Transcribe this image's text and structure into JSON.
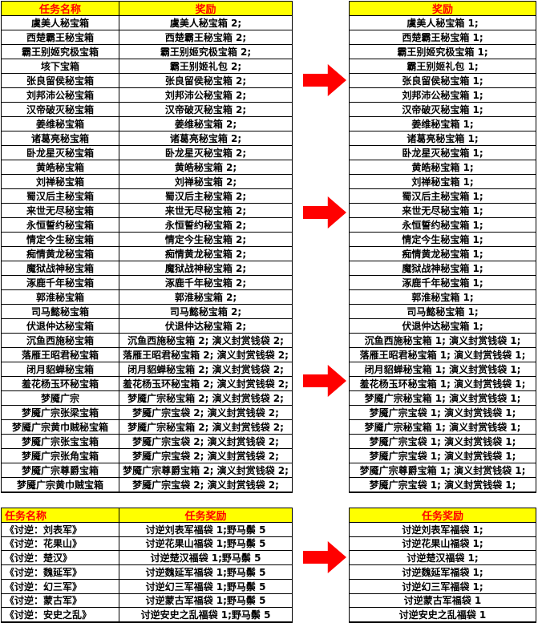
{
  "colors": {
    "header_bg": "#FFFF00",
    "header_text": "#FF0000",
    "arrow": "#FF0000",
    "border": "#000000",
    "cell_text": "#000000"
  },
  "arrows": {
    "direction": "right",
    "count": 4
  },
  "top": {
    "left": {
      "headers": [
        "任务名称",
        "奖励"
      ],
      "rows": [
        [
          "虞美人秘宝箱",
          "虞美人秘宝箱 2;"
        ],
        [
          "西楚霸王秘宝箱",
          "西楚霸王秘宝箱 2;"
        ],
        [
          "霸王别姬究极宝箱",
          "霸王别姬究极宝箱 2;"
        ],
        [
          "垓下宝箱",
          "霸王别姬礼包 2;"
        ],
        [
          "张良留侯秘宝箱",
          "张良留侯秘宝箱 2;"
        ],
        [
          "刘邦沛公秘宝箱",
          "刘邦沛公秘宝箱 2;"
        ],
        [
          "汉帝破灭秘宝箱",
          "汉帝破灭秘宝箱 2;"
        ],
        [
          "姜维秘宝箱",
          "姜维秘宝箱 2;"
        ],
        [
          "诸葛亮秘宝箱",
          "诸葛亮秘宝箱 2;"
        ],
        [
          "卧龙星灭秘宝箱",
          "卧龙星灭秘宝箱 2;"
        ],
        [
          "黄皓秘宝箱",
          "黄皓秘宝箱 2;"
        ],
        [
          "刘禅秘宝箱",
          "刘禅秘宝箱 2;"
        ],
        [
          "蜀汉后主秘宝箱",
          "蜀汉后主秘宝箱 2;"
        ],
        [
          "来世无尽秘宝箱",
          "来世无尽秘宝箱 2;"
        ],
        [
          "永恒誓约秘宝箱",
          "永恒誓约秘宝箱 2;"
        ],
        [
          "情定今生秘宝箱",
          "情定今生秘宝箱 2;"
        ],
        [
          "痴情黄龙秘宝箱",
          "痴情黄龙秘宝箱 2;"
        ],
        [
          "魔狱战神秘宝箱",
          "魔狱战神秘宝箱 2;"
        ],
        [
          "涿鹿千年秘宝箱",
          "涿鹿千年秘宝箱 2;"
        ],
        [
          "郭淮秘宝箱",
          "郭淮秘宝箱 2;"
        ],
        [
          "司马懿秘宝箱",
          "司马懿秘宝箱 2;"
        ],
        [
          "伏退仲达秘宝箱",
          "伏退仲达秘宝箱 2;"
        ],
        [
          "沉鱼西施秘宝箱",
          "沉鱼西施秘宝箱 2; 演义封赏钱袋 2;"
        ],
        [
          "落雁王昭君秘宝箱",
          "落雁王昭君秘宝箱 2; 演义封赏钱袋 2;"
        ],
        [
          "闭月貂蝉秘宝箱",
          "闭月貂蝉秘宝箱 2; 演义封赏钱袋 2;"
        ],
        [
          "羞花杨玉环秘宝箱",
          "羞花杨玉环秘宝箱 2; 演义封赏钱袋 2;"
        ],
        [
          "梦魇广宗",
          "梦魇广宗秘宝箱 2; 演义封赏钱袋 2;"
        ],
        [
          "梦魇广宗张梁宝箱",
          "梦魇广宗宝袋 2; 演义封赏钱袋 2;"
        ],
        [
          "梦魇广宗黄巾贼秘宝箱",
          "梦魇广宗秘宝箱 2; 演义封赏钱袋 2;"
        ],
        [
          "梦魇广宗张宝宝箱",
          "梦魇广宗宝袋 2; 演义封赏钱袋 2;"
        ],
        [
          "梦魇广宗张角宝箱",
          "梦魇广宗宝袋 2; 演义封赏钱袋 2;"
        ],
        [
          "梦魇广宗尊爵宝箱",
          "梦魇广宗尊爵宝箱 2; 演义封赏钱袋 2;"
        ],
        [
          "梦魇广宗黄巾贼宝箱",
          "梦魇广宗宝袋 2; 演义封赏钱袋 2;"
        ]
      ]
    },
    "right": {
      "header": "奖励",
      "rows": [
        "虞美人秘宝箱 1;",
        "西楚霸王秘宝箱 1;",
        "霸王别姬究极宝箱 1;",
        "霸王别姬礼包 1;",
        "张良留侯秘宝箱 1;",
        "刘邦沛公秘宝箱 1;",
        "汉帝破灭秘宝箱 1;",
        "姜维秘宝箱 1;",
        "诸葛亮秘宝箱 1;",
        "卧龙星灭秘宝箱 1;",
        "黄皓秘宝箱 1;",
        "刘禅秘宝箱 1;",
        "蜀汉后主秘宝箱 1;",
        "来世无尽秘宝箱 1;",
        "永恒誓约秘宝箱 1;",
        "情定今生秘宝箱 1;",
        "痴情黄龙秘宝箱 1;",
        "魔狱战神秘宝箱 1;",
        "涿鹿千年秘宝箱 1;",
        "郭淮秘宝箱 1;",
        "司马懿秘宝箱 1;",
        "伏退仲达秘宝箱 1;",
        "沉鱼西施秘宝箱 1; 演义封赏钱袋 1;",
        "落雁王昭君秘宝箱 1; 演义封赏钱袋 1;",
        "闭月貂蝉秘宝箱 1; 演义封赏钱袋 1;",
        "羞花杨玉环秘宝箱 1; 演义封赏钱袋 1;",
        "梦魇广宗秘宝箱 1; 演义封赏钱袋 1;",
        "梦魇广宗宝袋 1; 演义封赏钱袋 1;",
        "梦魇广宗秘宝箱 1; 演义封赏钱袋 1;",
        "梦魇广宗宝袋 1; 演义封赏钱袋 1;",
        "梦魇广宗宝袋 1; 演义封赏钱袋 1;",
        "梦魇广宗尊爵宝箱 1; 演义封赏钱袋 1;",
        "梦魇广宗宝袋 1; 演义封赏钱袋 1;"
      ]
    }
  },
  "bottom": {
    "left": {
      "headers": [
        "任务名称",
        "任务奖励"
      ],
      "rows": [
        [
          "《讨逆：刘表军》",
          "讨逆刘表军福袋 1;野马鬃 5"
        ],
        [
          "《讨逆：花果山》",
          "讨逆花果山福袋 1;野马鬃 5"
        ],
        [
          "《讨逆：楚汉》",
          "讨逆楚汉福袋 1;野马鬃 5"
        ],
        [
          "《讨逆：魏延军》",
          "讨逆魏延军福袋 1;野马鬃 5"
        ],
        [
          "《讨逆：幻三军》",
          "讨逆幻三军福袋 1;野马鬃 5"
        ],
        [
          "《讨逆：蒙古军》",
          "讨逆蒙古军福袋 1;野马鬃 5"
        ],
        [
          "《讨逆：安史之乱》",
          "讨逆安史之乱福袋 1;野马鬃 5"
        ]
      ]
    },
    "right": {
      "header": "任务奖励",
      "rows": [
        "讨逆刘表军福袋 1;",
        "讨逆花果山福袋 1;",
        "讨逆楚汉福袋 1;",
        "讨逆魏延军福袋 1;",
        "讨逆幻三军福袋 1;",
        "讨逆蒙古军福袋 1",
        "讨逆安史之乱福袋 1"
      ]
    }
  }
}
